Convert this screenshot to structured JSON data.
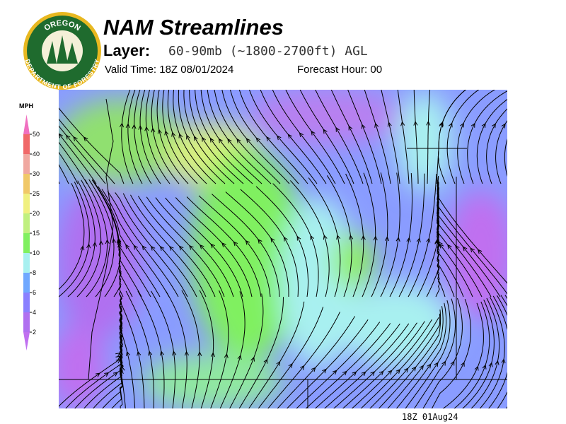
{
  "header": {
    "title": "NAM Streamlines",
    "layer_label": "Layer:",
    "layer": "60-90mb (~1800-2700ft) AGL",
    "valid_time": "Valid Time: 18Z 08/01/2024",
    "forecast_hour": "Forecast Hour: 00"
  },
  "logo": {
    "top": "OREGON",
    "bottom": "DEPARTMENT OF FORESTRY"
  },
  "legend": {
    "unit": "MPH",
    "levels": [
      2,
      4,
      6,
      8,
      10,
      15,
      20,
      25,
      30,
      40,
      50
    ],
    "colors": [
      "#c070f0",
      "#b070f0",
      "#8a80ff",
      "#70a8ff",
      "#a8f0f0",
      "#80f060",
      "#c0f080",
      "#f0f080",
      "#f0c868",
      "#f0a8a0",
      "#f06868",
      "#f070c0"
    ]
  },
  "footer": "18Z 01Aug24"
}
